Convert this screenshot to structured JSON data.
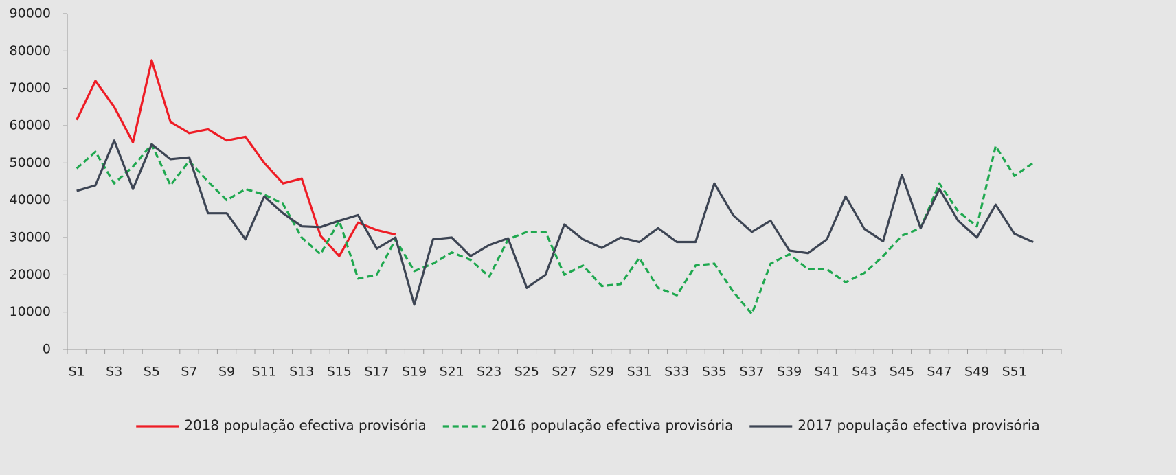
{
  "chart_data": {
    "type": "line",
    "categories": [
      "S1",
      null,
      "S3",
      null,
      "S5",
      null,
      "S7",
      null,
      "S9",
      null,
      "S11",
      null,
      "S13",
      null,
      "S15",
      null,
      "S17",
      null,
      "S19",
      null,
      "S21",
      null,
      "S23",
      null,
      "S25",
      null,
      "S27",
      null,
      "S29",
      null,
      "S31",
      null,
      "S33",
      null,
      "S35",
      null,
      "S37",
      null,
      "S39",
      null,
      "S41",
      null,
      "S43",
      null,
      "S45",
      null,
      "S47",
      null,
      "S49",
      null,
      "S51",
      null,
      null
    ],
    "series": [
      {
        "name": "2018 população efectiva provisória",
        "color": "#ee1c25",
        "dashed": false,
        "values": [
          61500,
          72000,
          65000,
          55500,
          77500,
          61000,
          58000,
          59000,
          56000,
          57000,
          50000,
          44500,
          45800,
          30500,
          25000,
          34000,
          32000,
          30800,
          null,
          null,
          null,
          null,
          null,
          null,
          null,
          null,
          null,
          null,
          null,
          null,
          null,
          null,
          null,
          null,
          null,
          null,
          null,
          null,
          null,
          null,
          null,
          null,
          null,
          null,
          null,
          null,
          null,
          null,
          null,
          null,
          null,
          null,
          null
        ]
      },
      {
        "name": "2016 população efectiva provisória",
        "color": "#1fa84f",
        "dashed": true,
        "values": [
          48500,
          53000,
          44500,
          49000,
          55000,
          44000,
          50500,
          45000,
          40000,
          43000,
          41500,
          39000,
          30000,
          25500,
          34500,
          19000,
          20000,
          29500,
          21000,
          23000,
          26000,
          24000,
          19500,
          29500,
          31500,
          31500,
          20000,
          22500,
          17000,
          17500,
          24500,
          16500,
          14500,
          22500,
          23000,
          15500,
          9500,
          23000,
          25500,
          21500,
          21500,
          18000,
          20500,
          25000,
          30500,
          32500,
          44500,
          37000,
          33000,
          54500,
          46500,
          50000,
          null
        ]
      },
      {
        "name": "2017 população efectiva provisória",
        "color": "#3d4554",
        "dashed": false,
        "values": [
          42500,
          44000,
          56000,
          43000,
          55000,
          51000,
          51500,
          36500,
          36500,
          29500,
          41000,
          36500,
          33000,
          32800,
          34500,
          36000,
          27000,
          30000,
          12000,
          29500,
          30000,
          25000,
          28000,
          29800,
          16500,
          20000,
          33500,
          29500,
          27200,
          30000,
          28800,
          32500,
          28800,
          28800,
          44500,
          36000,
          31500,
          34500,
          26500,
          25800,
          29500,
          41000,
          32300,
          29000,
          46800,
          32500,
          43000,
          34500,
          30000,
          38800,
          31000,
          28800,
          null
        ]
      }
    ],
    "ylim": [
      0,
      90000
    ],
    "yticks": [
      0,
      10000,
      20000,
      30000,
      40000,
      50000,
      60000,
      70000,
      80000,
      90000
    ],
    "grid": false,
    "legend": "bottom"
  }
}
